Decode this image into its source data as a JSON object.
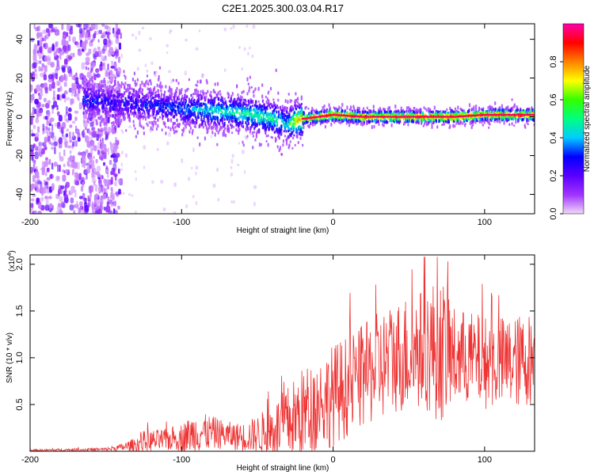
{
  "title": "C2E1.2025.300.03.04.R17",
  "chart_data": [
    {
      "type": "heatmap",
      "title": "C2E1.2025.300.03.04.R17",
      "xlabel": "Height of straight line (km)",
      "ylabel": "Frequency (Hz)",
      "xlim": [
        -200,
        133
      ],
      "ylim": [
        -50,
        48
      ],
      "xticks": [
        -200,
        -100,
        0,
        100
      ],
      "xtick_labels": [
        "-200",
        "-100",
        "0",
        "100"
      ],
      "yticks": [
        -40,
        -20,
        0,
        20,
        40
      ],
      "ytick_labels": [
        "-40",
        "-20",
        "0",
        "20",
        "40"
      ],
      "colorbar": {
        "label": "Normalized spectral amplitude",
        "range": [
          0,
          1
        ],
        "ticks": [
          0,
          0.2,
          0.4,
          0.6,
          0.8
        ],
        "tick_labels": [
          "0.0",
          "0.2",
          "0.4",
          "0.6",
          "0.8"
        ],
        "colormap": [
          "#f2d9f7",
          "#a033ff",
          "#5a00ff",
          "#0000ff",
          "#00ccff",
          "#00ff7f",
          "#33ff00",
          "#ffff00",
          "#ff8000",
          "#ff0000",
          "#ff00aa"
        ]
      },
      "ridge": {
        "x": [
          -160,
          -140,
          -120,
          -100,
          -80,
          -60,
          -40,
          -30,
          -25,
          -20,
          -10,
          0,
          20,
          40,
          60,
          80,
          100,
          120,
          133
        ],
        "y": [
          8,
          7,
          6,
          4,
          3,
          2,
          -1,
          -4,
          -2,
          -1,
          0,
          1,
          0,
          0,
          0,
          0,
          1,
          1,
          1
        ],
        "amplitude": [
          0.3,
          0.25,
          0.3,
          0.35,
          0.45,
          0.5,
          0.5,
          0.45,
          0.7,
          0.8,
          0.85,
          0.9,
          0.85,
          0.85,
          0.9,
          0.9,
          0.85,
          0.9,
          0.9
        ]
      },
      "noise_region_x": [
        -200,
        -140
      ]
    },
    {
      "type": "line",
      "xlabel": "Height of straight line (km)",
      "ylabel": "SNR (10 * v/v)",
      "y_multiplier_label": "(x10",
      "y_multiplier_exp": "4",
      "y_multiplier_close": ")",
      "xlim": [
        -200,
        133
      ],
      "ylim": [
        0,
        2.1
      ],
      "xticks": [
        -200,
        -100,
        0,
        100
      ],
      "xtick_labels": [
        "-200",
        "-100",
        "0",
        "100"
      ],
      "yticks": [
        0.5,
        1.0,
        1.5,
        2.0
      ],
      "ytick_labels": [
        "0.5",
        "1.0",
        "1.5",
        "2.0"
      ],
      "color": "#ee3333",
      "envelope": {
        "x": [
          -200,
          -150,
          -140,
          -130,
          -125,
          -110,
          -100,
          -90,
          -80,
          -70,
          -60,
          -50,
          -40,
          -35,
          -30,
          -25,
          -20,
          -10,
          0,
          10,
          20,
          30,
          40,
          50,
          60,
          70,
          75,
          80,
          90,
          100,
          110,
          120,
          133
        ],
        "baseline": [
          0.01,
          0.02,
          0.04,
          0.07,
          0.1,
          0.12,
          0.15,
          0.2,
          0.2,
          0.17,
          0.15,
          0.18,
          0.22,
          0.25,
          0.3,
          0.35,
          0.4,
          0.5,
          0.6,
          0.7,
          0.8,
          0.9,
          1.0,
          1.05,
          1.1,
          1.1,
          1.05,
          1.0,
          1.0,
          0.95,
          0.95,
          0.95,
          1.0
        ],
        "amplitude": [
          0.01,
          0.02,
          0.04,
          0.08,
          0.12,
          0.12,
          0.15,
          0.22,
          0.18,
          0.15,
          0.15,
          0.2,
          0.3,
          0.35,
          0.4,
          0.45,
          0.5,
          0.5,
          0.55,
          0.55,
          0.55,
          0.6,
          0.6,
          0.65,
          0.65,
          0.8,
          0.7,
          0.55,
          0.5,
          0.5,
          0.5,
          0.5,
          0.5
        ]
      },
      "n_points": 1100
    }
  ]
}
